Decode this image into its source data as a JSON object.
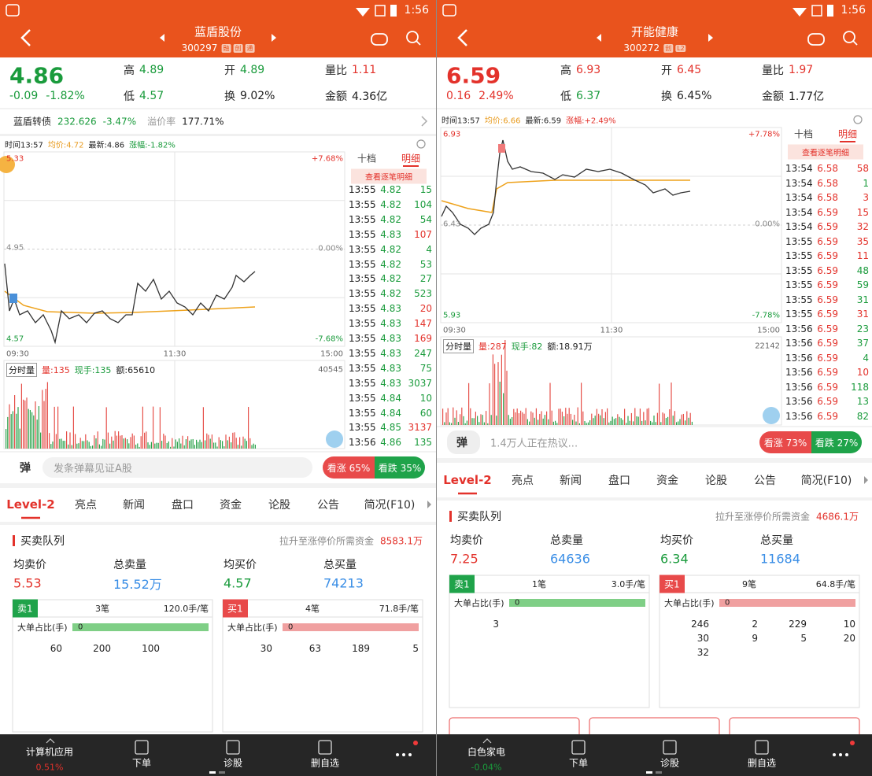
{
  "panels": [
    {
      "color": "#1a9b3c",
      "status_time": "1:56",
      "header": {
        "name": "蓝盾股份",
        "code": "300297",
        "badges": [
          "融",
          "创",
          "通"
        ]
      },
      "quote": {
        "price": "4.86",
        "change": "-0.09",
        "change_pct": "-1.82%",
        "stats": [
          [
            "高",
            "4.89"
          ],
          [
            "开",
            "4.89"
          ],
          [
            "量比",
            "1.11"
          ],
          [
            "低",
            "4.57"
          ],
          [
            "换",
            "9.02%"
          ],
          [
            "金额",
            "4.36亿"
          ]
        ],
        "stat_colors": [
          "#1a9b3c",
          "#1a9b3c",
          "#e3322b",
          "#1a9b3c",
          "#222222",
          "#222222"
        ]
      },
      "bond": {
        "name": "蓝盾转债",
        "price": "232.626",
        "change": "-3.47%",
        "label": "溢价率",
        "premium": "177.71%"
      },
      "chart": {
        "time": "时间13:57",
        "avg": "均价:4.72",
        "latest": "最新:4.86",
        "pct": "涨幅:-1.82%",
        "y_top": "5.33",
        "pct_top": "+7.68%",
        "y_mid": "4.95",
        "pct_mid": "0.00%",
        "y_bottom": "4.57",
        "pct_bottom": "-7.68%",
        "x_labels": [
          "09:30",
          "11:30",
          "15:00"
        ],
        "volume_label": "分时量",
        "volume": "量:135",
        "now_vol": "现手:135",
        "amount": "额:65610",
        "vol_max": "40545"
      },
      "trades": {
        "tabs": [
          "十档",
          "明细"
        ],
        "link": "查看逐笔明细",
        "rows": [
          [
            "13:55",
            "4.82",
            "15"
          ],
          [
            "13:55",
            "4.82",
            "104"
          ],
          [
            "13:55",
            "4.82",
            "54"
          ],
          [
            "13:55",
            "4.83",
            "107"
          ],
          [
            "13:55",
            "4.82",
            "4"
          ],
          [
            "13:55",
            "4.82",
            "53"
          ],
          [
            "13:55",
            "4.82",
            "27"
          ],
          [
            "13:55",
            "4.82",
            "523"
          ],
          [
            "13:55",
            "4.83",
            "20"
          ],
          [
            "13:55",
            "4.83",
            "147"
          ],
          [
            "13:55",
            "4.83",
            "169"
          ],
          [
            "13:55",
            "4.83",
            "247"
          ],
          [
            "13:55",
            "4.83",
            "75"
          ],
          [
            "13:55",
            "4.83",
            "3037"
          ],
          [
            "13:55",
            "4.84",
            "10"
          ],
          [
            "13:55",
            "4.84",
            "60"
          ],
          [
            "13:55",
            "4.85",
            "3137"
          ],
          [
            "13:56",
            "4.86",
            "135"
          ]
        ],
        "price_color": "#1a9b3c",
        "vol_colors": [
          "g",
          "g",
          "g",
          "r",
          "g",
          "g",
          "g",
          "g",
          "r",
          "r",
          "r",
          "g",
          "g",
          "g",
          "g",
          "g",
          "r",
          "g"
        ]
      },
      "comment": {
        "icon": "弹",
        "placeholder": "发条弹幕见证A股",
        "bull": "看涨 65%",
        "bear": "看跌 35%"
      },
      "tabs": [
        "Level-2",
        "亮点",
        "新闻",
        "盘口",
        "资金",
        "论股",
        "公告",
        "简况(F10)"
      ],
      "queue": {
        "title": "买卖队列",
        "need_label": "拉升至涨停价所需资金",
        "need": "8583.1万",
        "summary": [
          [
            "均卖价",
            "5.53"
          ],
          [
            "总卖量",
            "15.52万"
          ],
          [
            "均买价",
            "4.57"
          ],
          [
            "总买量",
            "74213"
          ]
        ],
        "sell": {
          "tag": "卖1",
          "count": "3笔",
          "avg": "120.0手/笔",
          "big_label": "大单占比(手)",
          "big": "0",
          "orders": [
            "60",
            "200",
            "100"
          ]
        },
        "buy": {
          "tag": "买1",
          "count": "4笔",
          "avg": "71.8手/笔",
          "big_label": "大单占比(手)",
          "big": "0",
          "orders": [
            "30",
            "63",
            "189",
            "5"
          ]
        }
      },
      "nav": {
        "sector": "计算机应用",
        "sector_pct": "0.51%",
        "sector_color": "#e3322b",
        "items": [
          "下单",
          "诊股",
          "删自选"
        ]
      }
    },
    {
      "color": "#e3322b",
      "status_time": "1:56",
      "header": {
        "name": "开能健康",
        "code": "300272",
        "badges": [
          "创",
          "L2"
        ]
      },
      "quote": {
        "price": "6.59",
        "change": "0.16",
        "change_pct": "2.49%",
        "stats": [
          [
            "高",
            "6.93"
          ],
          [
            "开",
            "6.45"
          ],
          [
            "量比",
            "1.97"
          ],
          [
            "低",
            "6.37"
          ],
          [
            "换",
            "6.45%"
          ],
          [
            "金额",
            "1.77亿"
          ]
        ],
        "stat_colors": [
          "#e3322b",
          "#e3322b",
          "#e3322b",
          "#1a9b3c",
          "#222222",
          "#222222"
        ]
      },
      "chart": {
        "time": "时间13:57",
        "avg": "均价:6.66",
        "latest": "最新:6.59",
        "pct": "涨幅:+2.49%",
        "y_top": "6.93",
        "pct_top": "+7.78%",
        "y_mid": "6.43",
        "pct_mid": "0.00%",
        "y_bottom": "5.93",
        "pct_bottom": "-7.78%",
        "x_labels": [
          "09:30",
          "11:30",
          "15:00"
        ],
        "volume_label": "分时量",
        "volume": "量:287",
        "now_vol": "现手:82",
        "amount": "额:18.91万",
        "vol_max": "22142"
      },
      "trades": {
        "tabs": [
          "十档",
          "明细"
        ],
        "link": "查看逐笔明细",
        "rows": [
          [
            "13:54",
            "6.58",
            "58"
          ],
          [
            "13:54",
            "6.58",
            "1"
          ],
          [
            "13:54",
            "6.58",
            "3"
          ],
          [
            "13:54",
            "6.59",
            "15"
          ],
          [
            "13:54",
            "6.59",
            "32"
          ],
          [
            "13:55",
            "6.59",
            "35"
          ],
          [
            "13:55",
            "6.59",
            "11"
          ],
          [
            "13:55",
            "6.59",
            "48"
          ],
          [
            "13:55",
            "6.59",
            "59"
          ],
          [
            "13:55",
            "6.59",
            "31"
          ],
          [
            "13:55",
            "6.59",
            "31"
          ],
          [
            "13:56",
            "6.59",
            "23"
          ],
          [
            "13:56",
            "6.59",
            "37"
          ],
          [
            "13:56",
            "6.59",
            "4"
          ],
          [
            "13:56",
            "6.59",
            "10"
          ],
          [
            "13:56",
            "6.59",
            "118"
          ],
          [
            "13:56",
            "6.59",
            "13"
          ],
          [
            "13:56",
            "6.59",
            "82"
          ]
        ],
        "price_color": "#e3322b",
        "vol_colors": [
          "r",
          "g",
          "r",
          "r",
          "r",
          "r",
          "r",
          "g",
          "g",
          "g",
          "r",
          "g",
          "g",
          "g",
          "r",
          "g",
          "g",
          "g"
        ]
      },
      "comment": {
        "icon": "弹",
        "placeholder": "1.4万人正在热议...",
        "bull": "看涨 73%",
        "bear": "看跌 27%"
      },
      "tabs": [
        "Level-2",
        "亮点",
        "新闻",
        "盘口",
        "资金",
        "论股",
        "公告",
        "简况(F10)"
      ],
      "queue": {
        "title": "买卖队列",
        "need_label": "拉升至涨停价所需资金",
        "need": "4686.1万",
        "summary": [
          [
            "均卖价",
            "7.25"
          ],
          [
            "总卖量",
            "64636"
          ],
          [
            "均买价",
            "6.34"
          ],
          [
            "总买量",
            "11684"
          ]
        ],
        "sell": {
          "tag": "卖1",
          "count": "1笔",
          "avg": "3.0手/笔",
          "big_label": "大单占比(手)",
          "big": "0",
          "orders": [
            "3"
          ]
        },
        "buy": {
          "tag": "买1",
          "count": "9笔",
          "avg": "64.8手/笔",
          "big_label": "大单占比(手)",
          "big": "0",
          "orders": [
            "246",
            "2",
            "229",
            "10",
            "30",
            "9",
            "5",
            "20",
            "32"
          ]
        }
      },
      "nav": {
        "sector": "白色家电",
        "sector_pct": "-0.04%",
        "sector_color": "#1a9b3c",
        "items": [
          "下单",
          "诊股",
          "删自选"
        ]
      }
    }
  ]
}
